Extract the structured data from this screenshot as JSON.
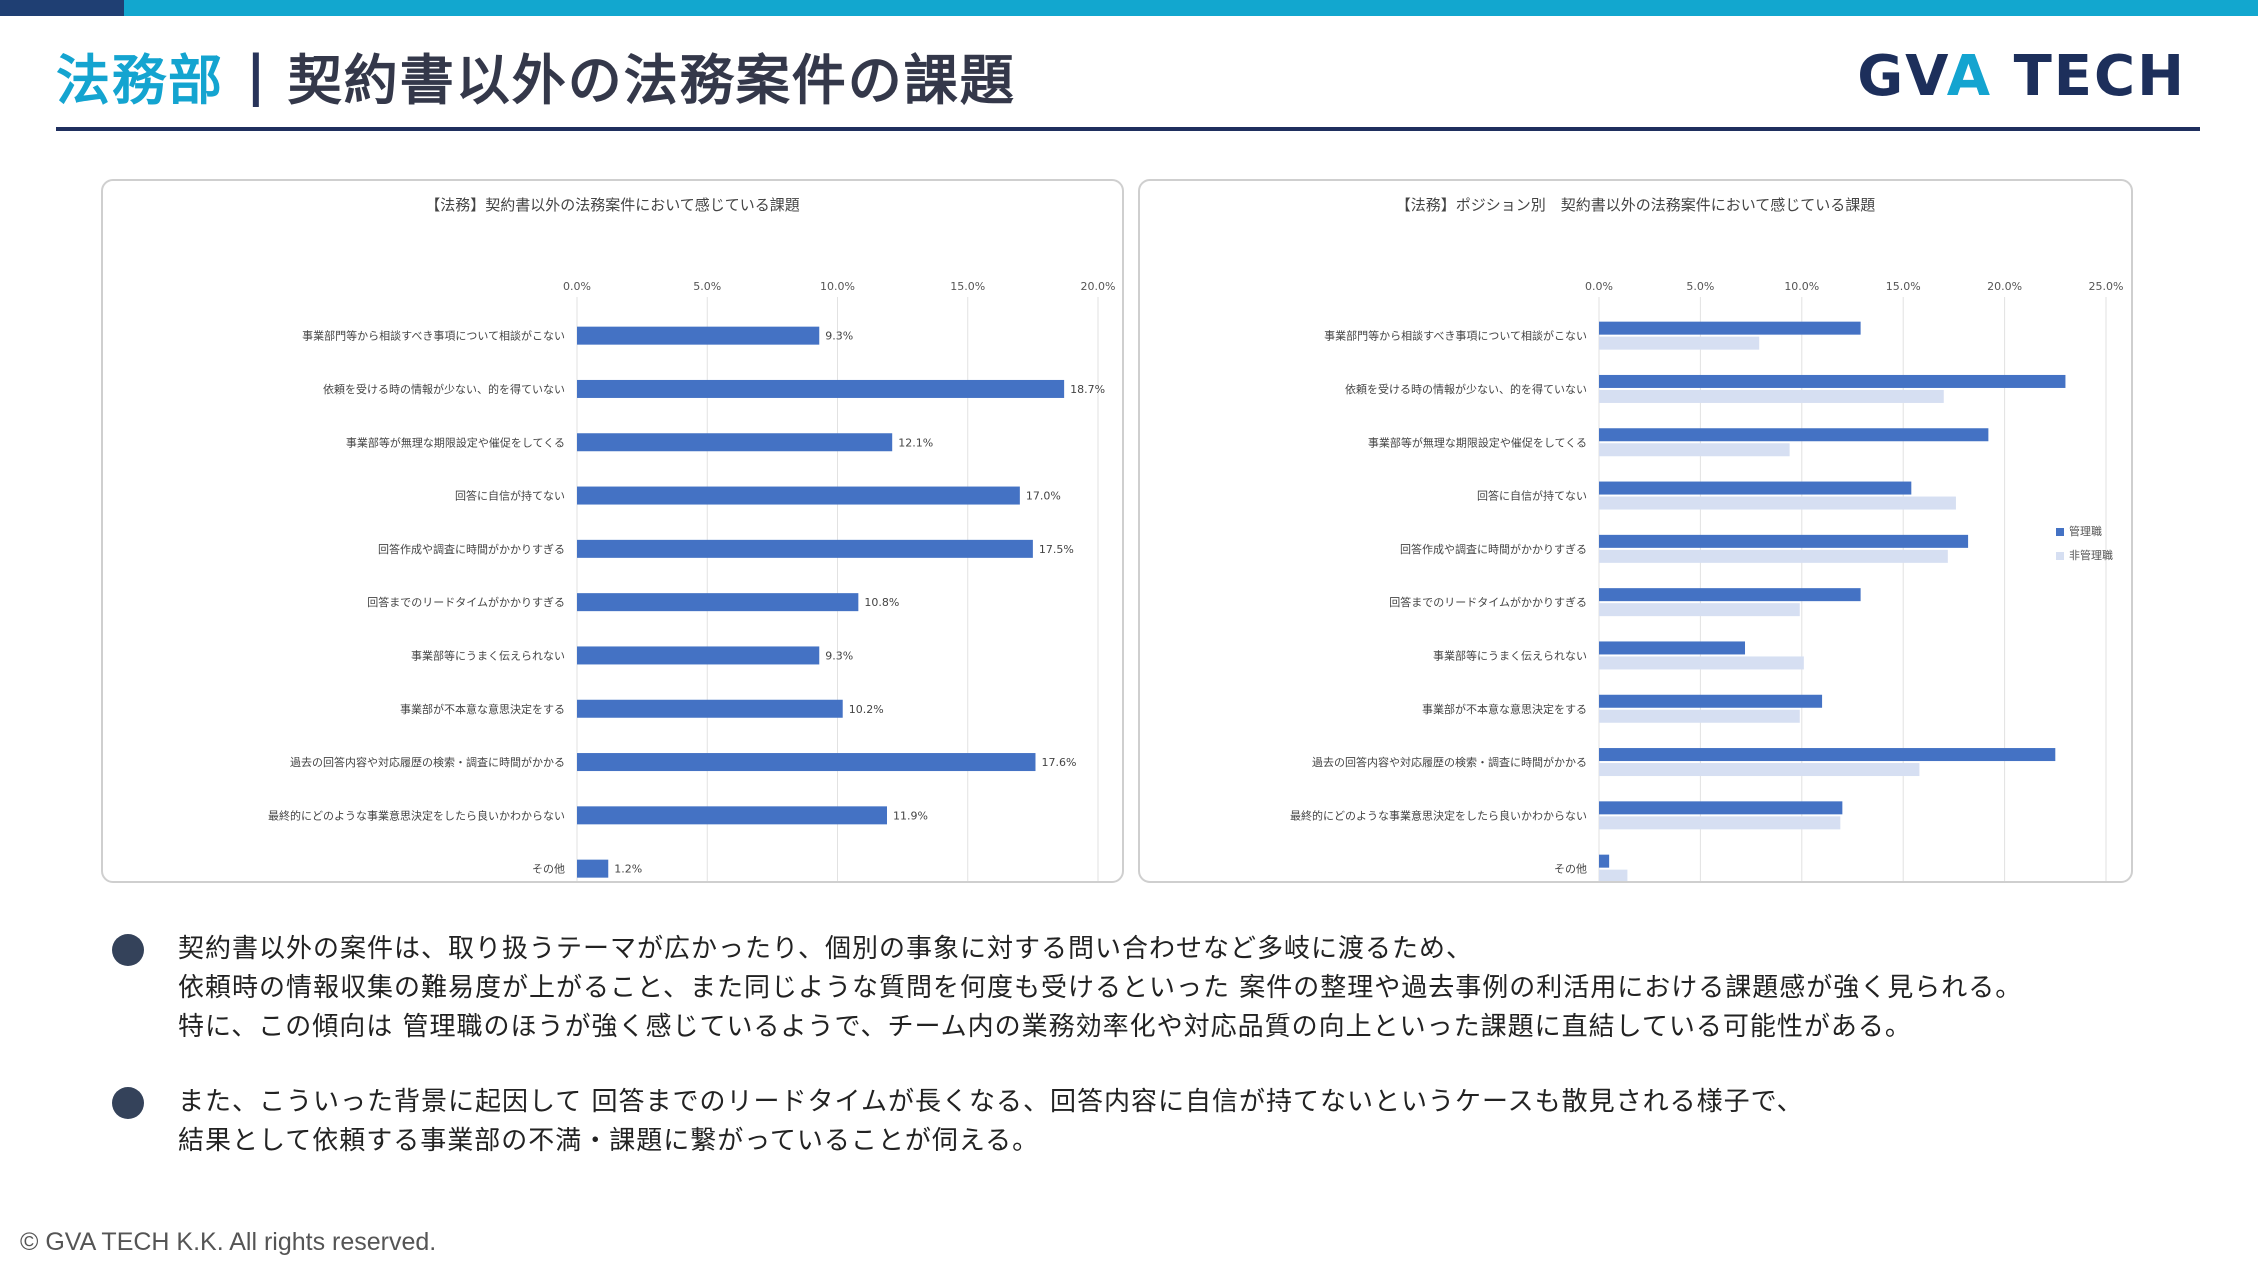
{
  "header": {
    "dept": "法務部",
    "separator": "|",
    "title": "契約書以外の法務案件の課題",
    "logo_left": "GV",
    "logo_a": "A",
    "logo_right": " TECH"
  },
  "colors": {
    "accent": "#14a4d0",
    "navy": "#1f2f5e",
    "bar_primary": "#4472c4",
    "bar_secondary": "#d6dff2"
  },
  "chart_data": [
    {
      "type": "bar",
      "orientation": "horizontal",
      "title": "【法務】契約書以外の法務案件において感じている課題",
      "xlim": [
        0,
        20
      ],
      "ticks": [
        "0.0%",
        "5.0%",
        "10.0%",
        "15.0%",
        "20.0%"
      ],
      "grid": true,
      "categories": [
        "事業部門等から相談すべき事項について相談がこない",
        "依頼を受ける時の情報が少ない、的を得ていない",
        "事業部等が無理な期限設定や催促をしてくる",
        "回答に自信が持てない",
        "回答作成や調査に時間がかかりすぎる",
        "回答までのリードタイムがかかりすぎる",
        "事業部等にうまく伝えられない",
        "事業部が不本意な意思決定をする",
        "過去の回答内容や対応履歴の検索・調査に時間がかかる",
        "最終的にどのような事業意思決定をしたら良いかわからない",
        "その他"
      ],
      "values": [
        9.3,
        18.7,
        12.1,
        17.0,
        17.5,
        10.8,
        9.3,
        10.2,
        17.6,
        11.9,
        1.2
      ],
      "value_labels": [
        "9.3%",
        "18.7%",
        "12.1%",
        "17.0%",
        "17.5%",
        "10.8%",
        "9.3%",
        "10.2%",
        "17.6%",
        "11.9%",
        "1.2%"
      ]
    },
    {
      "type": "bar",
      "orientation": "horizontal",
      "title": "【法務】ポジション別　契約書以外の法務案件において感じている課題",
      "xlim": [
        0,
        25
      ],
      "ticks": [
        "0.0%",
        "5.0%",
        "10.0%",
        "15.0%",
        "20.0%",
        "25.0%"
      ],
      "grid": true,
      "legend_position": "right",
      "categories": [
        "事業部門等から相談すべき事項について相談がこない",
        "依頼を受ける時の情報が少ない、的を得ていない",
        "事業部等が無理な期限設定や催促をしてくる",
        "回答に自信が持てない",
        "回答作成や調査に時間がかかりすぎる",
        "回答までのリードタイムがかかりすぎる",
        "事業部等にうまく伝えられない",
        "事業部が不本意な意思決定をする",
        "過去の回答内容や対応履歴の検索・調査に時間がかかる",
        "最終的にどのような事業意思決定をしたら良いかわからない",
        "その他"
      ],
      "series": [
        {
          "name": "管理職",
          "values": [
            12.9,
            23.0,
            19.2,
            15.4,
            18.2,
            12.9,
            7.2,
            11.0,
            22.5,
            12.0,
            0.5
          ]
        },
        {
          "name": "非管理職",
          "values": [
            7.9,
            17.0,
            9.4,
            17.6,
            17.2,
            9.9,
            10.1,
            9.9,
            15.8,
            11.9,
            1.4
          ]
        }
      ]
    }
  ],
  "bullets": [
    {
      "lines": [
        "契約書以外の案件は、取り扱うテーマが広かったり、個別の事象に対する問い合わせなど多岐に渡るため、",
        "依頼時の情報収集の難易度が上がること、また同じような質問を何度も受けるといった 案件の整理や過去事例の利活用における課題感が強く見られる。",
        "特に、この傾向は 管理職のほうが強く感じているようで、チーム内の業務効率化や対応品質の向上といった課題に直結している可能性がある。"
      ]
    },
    {
      "lines": [
        "また、こういった背景に起因して 回答までのリードタイムが長くなる、回答内容に自信が持てないというケースも散見される様子で、",
        "結果として依頼する事業部の不満・課題に繋がっていることが伺える。"
      ]
    }
  ],
  "footer": "© GVA TECH K.K. All rights reserved."
}
